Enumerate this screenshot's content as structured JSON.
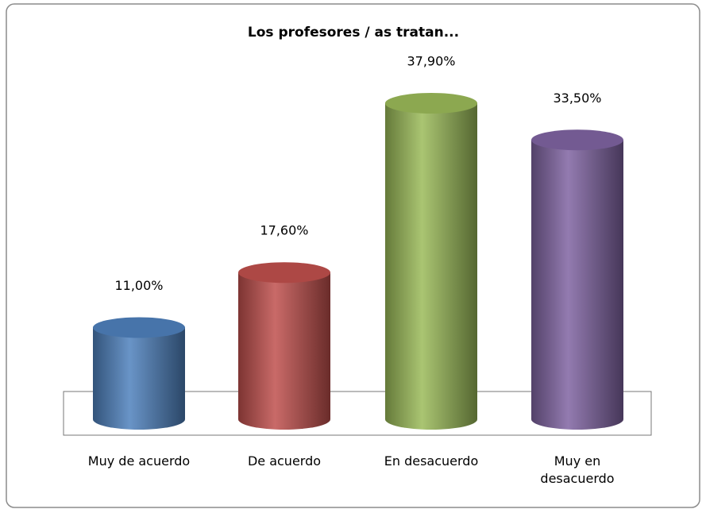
{
  "chart_data": {
    "type": "cylinder",
    "title": "Los profesores / as tratan...",
    "categories": [
      "Muy de acuerdo",
      "De acuerdo",
      "En desacuerdo",
      "Muy en desacuerdo"
    ],
    "values": [
      11.0,
      17.6,
      37.9,
      33.5
    ],
    "value_labels": [
      "11,00%",
      "17,60%",
      "37,90%",
      "33,50%"
    ],
    "colors": [
      "#4f81bd",
      "#c0504d",
      "#9bbb59",
      "#8064a2"
    ]
  }
}
